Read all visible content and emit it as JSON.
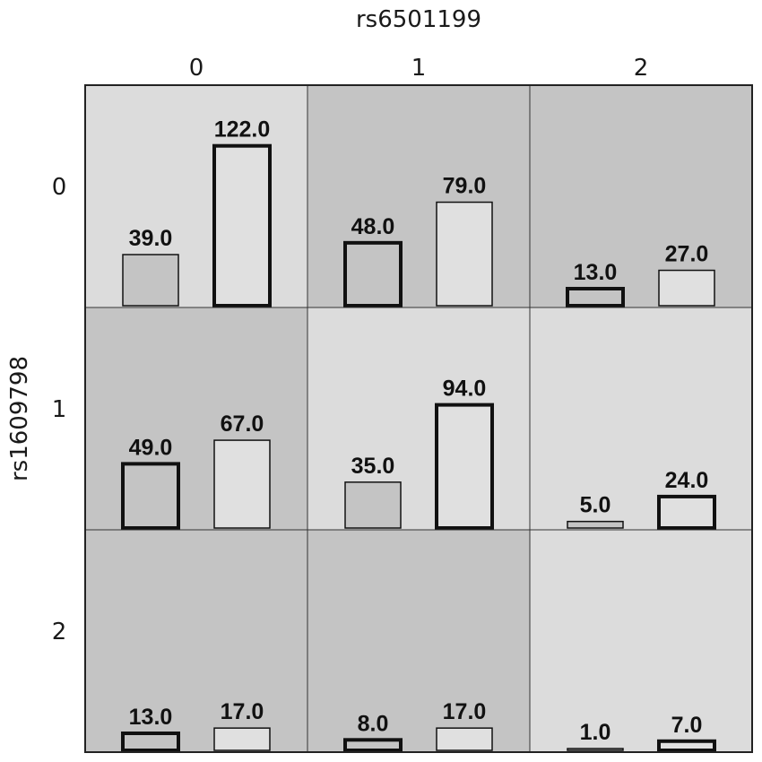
{
  "chart_data": {
    "type": "bar",
    "xlabel": "rs6501199",
    "ylabel": "rs1609798",
    "col_labels": [
      "0",
      "1",
      "2"
    ],
    "row_labels": [
      "0",
      "1",
      "2"
    ],
    "ylim": [
      0,
      130
    ],
    "cells": [
      [
        {
          "values": [
            39.0,
            122.0
          ],
          "labels": [
            "39.0",
            "122.0"
          ],
          "bg": "#dcdcdc",
          "thick": [
            false,
            true
          ]
        },
        {
          "values": [
            48.0,
            79.0
          ],
          "labels": [
            "48.0",
            "79.0"
          ],
          "bg": "#c4c4c4",
          "thick": [
            true,
            false
          ]
        },
        {
          "values": [
            13.0,
            27.0
          ],
          "labels": [
            "13.0",
            "27.0"
          ],
          "bg": "#c4c4c4",
          "thick": [
            true,
            false
          ]
        }
      ],
      [
        {
          "values": [
            49.0,
            67.0
          ],
          "labels": [
            "49.0",
            "67.0"
          ],
          "bg": "#c4c4c4",
          "thick": [
            true,
            false
          ]
        },
        {
          "values": [
            35.0,
            94.0
          ],
          "labels": [
            "35.0",
            "94.0"
          ],
          "bg": "#dcdcdc",
          "thick": [
            false,
            true
          ]
        },
        {
          "values": [
            5.0,
            24.0
          ],
          "labels": [
            "5.0",
            "24.0"
          ],
          "bg": "#dcdcdc",
          "thick": [
            false,
            true
          ]
        }
      ],
      [
        {
          "values": [
            13.0,
            17.0
          ],
          "labels": [
            "13.0",
            "17.0"
          ],
          "bg": "#c4c4c4",
          "thick": [
            true,
            false
          ]
        },
        {
          "values": [
            8.0,
            17.0
          ],
          "labels": [
            "8.0",
            "17.0"
          ],
          "bg": "#c4c4c4",
          "thick": [
            true,
            false
          ]
        },
        {
          "values": [
            1.0,
            7.0
          ],
          "labels": [
            "1.0",
            "7.0"
          ],
          "bg": "#dcdcdc",
          "thick": [
            false,
            true
          ]
        }
      ]
    ],
    "bar_colors": [
      "#c4c4c4",
      "#e0e0e0"
    ],
    "grid_line_color": "#333333"
  }
}
